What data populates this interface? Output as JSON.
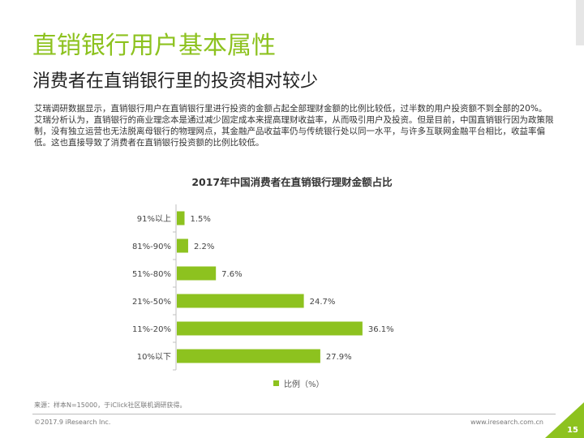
{
  "slide": {
    "title": "直销银行用户基本属性",
    "subtitle": "消费者在直销银行里的投资相对较少",
    "paragraphs": [
      "艾瑞调研数据显示，直销银行用户在直销银行里进行投资的金额占起全部理财金额的比例比较低，过半数的用户投资额不到全部的20%。",
      "艾瑞分析认为，直销银行的商业理念本是通过减少固定成本来提高理财收益率，从而吸引用户及投资。但是目前，中国直销银行因为政策限制，没有独立运营也无法脱离母银行的物理网点，其金融产品收益率仍与传统银行处以同一水平，与许多互联网金融平台相比，收益率偏低。这也直接导致了消费者在直销银行投资额的比例比较低。"
    ],
    "source": "来源：样本N=15000，于iClick社区联机调研获得。",
    "copyright": "©2017.9 iResearch Inc.",
    "website": "www.iresearch.com.cn",
    "page_number": "15"
  },
  "colors": {
    "accent": "#8dc21f",
    "bar": "#8dc21f"
  },
  "chart_data": {
    "type": "bar",
    "orientation": "horizontal",
    "title": "2017年中国消费者在直销银行理财金额占比",
    "categories": [
      "91%以上",
      "81%-90%",
      "51%-80%",
      "21%-50%",
      "11%-20%",
      "10%以下"
    ],
    "series": [
      {
        "name": "比例（%）",
        "values": [
          1.5,
          2.2,
          7.6,
          24.7,
          36.1,
          27.9
        ]
      }
    ],
    "value_labels": [
      "1.5%",
      "2.2%",
      "7.6%",
      "24.7%",
      "36.1%",
      "27.9%"
    ],
    "xlim": [
      0,
      50
    ],
    "grid": false,
    "legend_position": "bottom"
  }
}
